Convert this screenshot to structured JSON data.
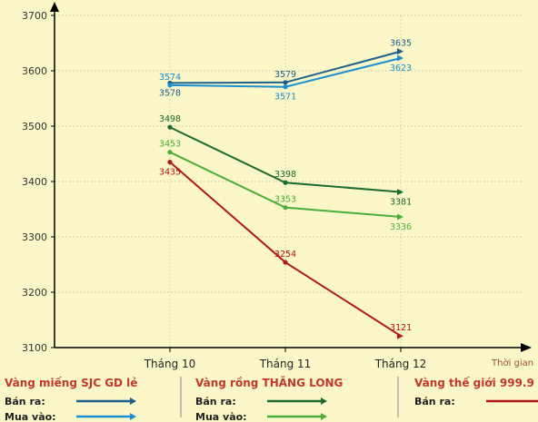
{
  "chart_data": {
    "type": "line",
    "categories": [
      "Tháng 10",
      "Tháng 11",
      "Tháng 12"
    ],
    "ylim": [
      3100,
      3700
    ],
    "yticks": [
      3100,
      3200,
      3300,
      3400,
      3500,
      3600,
      3700
    ],
    "xlabel": "Thời gian",
    "ylabel": "",
    "grid": true,
    "series": [
      {
        "group": "sjc",
        "color": "#1f5f8b",
        "values": [
          3578,
          3579,
          3635
        ],
        "label_side": [
          "below",
          "above",
          "above"
        ]
      },
      {
        "group": "sjc",
        "color": "#1c8fcf",
        "values": [
          3574,
          3571,
          3623
        ],
        "label_side": [
          "above",
          "below",
          "below"
        ]
      },
      {
        "group": "thanglong",
        "color": "#1e6b2e",
        "values": [
          3498,
          3398,
          3381
        ],
        "label_side": [
          "above",
          "above",
          "below"
        ]
      },
      {
        "group": "thanglong",
        "color": "#4cae3a",
        "values": [
          3453,
          3353,
          3336
        ],
        "label_side": [
          "above",
          "above",
          "below"
        ]
      },
      {
        "group": "world",
        "color": "#b01818",
        "values": [
          3435,
          3254,
          3121
        ],
        "label_side": [
          "below",
          "above",
          "above"
        ]
      }
    ]
  },
  "legend": {
    "groups": [
      {
        "title": "Vàng miếng SJC GD lẻ",
        "rows": [
          {
            "label": "Bán ra:",
            "color": "#1f5f8b"
          },
          {
            "label": "Mua vào:",
            "color": "#1c8fcf"
          }
        ]
      },
      {
        "title": "Vàng rồng THĂNG LONG",
        "rows": [
          {
            "label": "Bán ra:",
            "color": "#1e6b2e"
          },
          {
            "label": "Mua vào:",
            "color": "#4cae3a"
          }
        ]
      },
      {
        "title": "Vàng thế giới 999.9",
        "rows": [
          {
            "label": "Bán ra:",
            "color": "#b01818"
          }
        ]
      }
    ]
  }
}
